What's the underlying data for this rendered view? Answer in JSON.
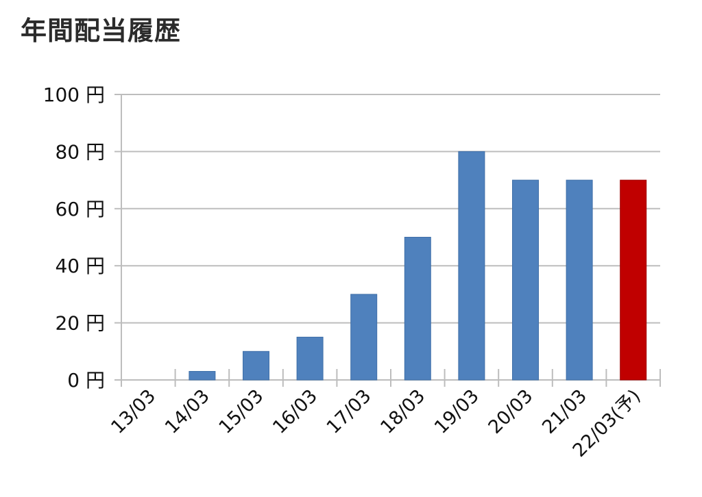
{
  "chart_data": {
    "type": "bar",
    "title": "年間配当履歴",
    "categories": [
      "13/03",
      "14/03",
      "15/03",
      "16/03",
      "17/03",
      "18/03",
      "19/03",
      "20/03",
      "21/03",
      "22/03(予)"
    ],
    "values": [
      0,
      3,
      10,
      15,
      30,
      50,
      80,
      70,
      70,
      70
    ],
    "bar_colors": [
      "#4f81bd",
      "#4f81bd",
      "#4f81bd",
      "#4f81bd",
      "#4f81bd",
      "#4f81bd",
      "#4f81bd",
      "#4f81bd",
      "#4f81bd",
      "#c00000"
    ],
    "ylim": [
      0,
      100
    ],
    "yticks": [
      0,
      20,
      40,
      60,
      80,
      100
    ],
    "ytick_labels": [
      "0 円",
      "20 円",
      "40 円",
      "60 円",
      "80 円",
      "100 円"
    ],
    "grid": true,
    "xlabel": "",
    "ylabel": ""
  }
}
